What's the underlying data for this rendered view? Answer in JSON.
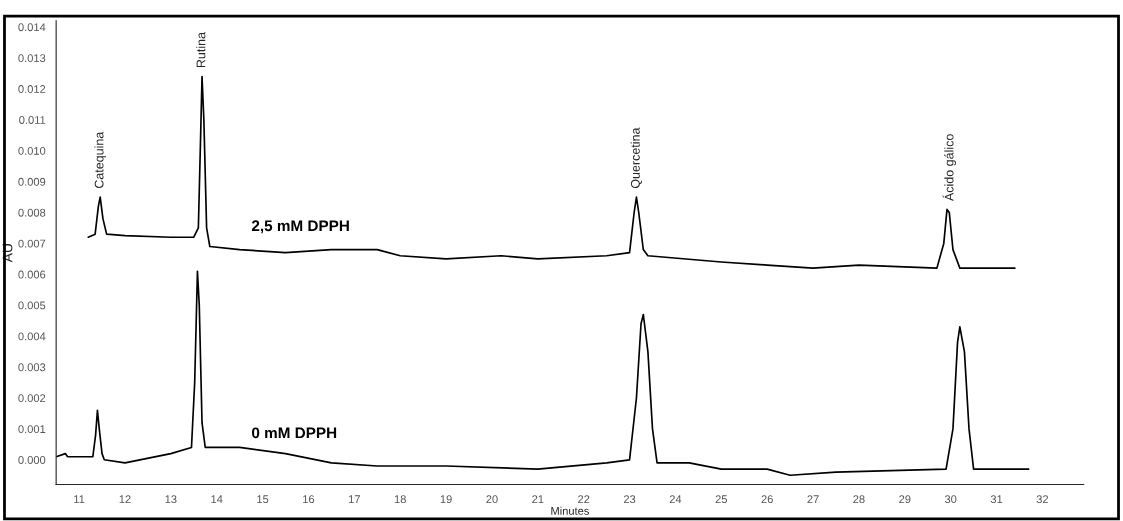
{
  "chart_data": {
    "type": "line",
    "xlabel": "Minutes",
    "ylabel": "AU",
    "xlim": [
      10.5,
      32.9
    ],
    "ylim": [
      -0.0008,
      0.0142
    ],
    "xticks": [
      11,
      12,
      13,
      14,
      15,
      16,
      17,
      18,
      19,
      20,
      21,
      22,
      23,
      24,
      25,
      26,
      27,
      28,
      29,
      30,
      31,
      32
    ],
    "yticks": [
      {
        "value": 0,
        "label": "0.000"
      },
      {
        "value": 0.001,
        "label": "0.001"
      },
      {
        "value": 0.002,
        "label": "0.002"
      },
      {
        "value": 0.003,
        "label": "0.003"
      },
      {
        "value": 0.004,
        "label": "0.004"
      },
      {
        "value": 0.005,
        "label": "0.005"
      },
      {
        "value": 0.006,
        "label": "0.006"
      },
      {
        "value": 0.007,
        "label": "0.007"
      },
      {
        "value": 0.008,
        "label": "0.008"
      },
      {
        "value": 0.009,
        "label": "0.009"
      },
      {
        "value": 0.01,
        "label": "0.010"
      },
      {
        "value": 0.011,
        "label": "0.011"
      },
      {
        "value": 0.012,
        "label": "0.012"
      },
      {
        "value": 0.013,
        "label": "0.013"
      },
      {
        "value": 0.014,
        "label": "0.014"
      }
    ],
    "grid": false,
    "legend": false,
    "marker": "none",
    "line_style": "solid",
    "series": [
      {
        "name": "2,5 mM DPPH",
        "color": "#000000",
        "x": [
          11.2,
          11.35,
          11.42,
          11.46,
          11.52,
          11.6,
          12.0,
          13.0,
          13.5,
          13.6,
          13.65,
          13.68,
          13.72,
          13.78,
          13.85,
          14.5,
          15.5,
          16.5,
          17.5,
          18.0,
          19.0,
          20.2,
          21.0,
          22.5,
          23.0,
          23.1,
          23.15,
          23.2,
          23.3,
          23.4,
          25.0,
          26.0,
          27.0,
          28.0,
          29.7,
          29.85,
          29.92,
          29.97,
          30.05,
          30.2,
          31.4
        ],
        "values": [
          0.0072,
          0.0073,
          0.0082,
          0.0085,
          0.0078,
          0.0073,
          0.00725,
          0.0072,
          0.0072,
          0.0075,
          0.0105,
          0.0124,
          0.011,
          0.0075,
          0.0069,
          0.0068,
          0.0067,
          0.0068,
          0.0068,
          0.0066,
          0.0065,
          0.0066,
          0.0065,
          0.0066,
          0.0067,
          0.008,
          0.0085,
          0.008,
          0.0068,
          0.0066,
          0.0064,
          0.0063,
          0.0062,
          0.0063,
          0.0062,
          0.007,
          0.0081,
          0.008,
          0.0068,
          0.0062,
          0.0062
        ]
      },
      {
        "name": "0 mM DPPH",
        "color": "#000000",
        "x": [
          10.5,
          10.7,
          10.75,
          11.0,
          11.3,
          11.36,
          11.4,
          11.44,
          11.5,
          11.55,
          12.0,
          13.0,
          13.45,
          13.52,
          13.58,
          13.62,
          13.68,
          13.75,
          14.5,
          15.5,
          16.5,
          17.5,
          19.0,
          21.0,
          22.5,
          23.0,
          23.15,
          23.25,
          23.3,
          23.4,
          23.5,
          23.6,
          24.3,
          25.0,
          26.0,
          26.5,
          27.5,
          29.9,
          30.05,
          30.15,
          30.2,
          30.3,
          30.4,
          30.5,
          31.7
        ],
        "values": [
          0.0001,
          0.0002,
          0.0001,
          0.0001,
          0.0001,
          0.0008,
          0.0016,
          0.001,
          0.0002,
          0.0,
          -0.0001,
          0.0002,
          0.0004,
          0.0025,
          0.0061,
          0.005,
          0.0012,
          0.0004,
          0.0004,
          0.0002,
          -0.0001,
          -0.0002,
          -0.0002,
          -0.0003,
          -0.0001,
          0.0,
          0.002,
          0.0044,
          0.0047,
          0.0035,
          0.001,
          -0.0001,
          -0.0001,
          -0.0003,
          -0.0003,
          -0.0005,
          -0.0004,
          -0.0003,
          0.001,
          0.0038,
          0.0043,
          0.0035,
          0.001,
          -0.0003,
          -0.0003
        ]
      }
    ],
    "annotations": [
      {
        "text": "Catequina",
        "x": 11.46,
        "y": 0.0085
      },
      {
        "text": "Rutina",
        "x": 13.68,
        "y": 0.0124
      },
      {
        "text": "Quercetina",
        "x": 23.15,
        "y": 0.0085
      },
      {
        "text": "Ácido gálico",
        "x": 29.97,
        "y": 0.0081
      }
    ]
  }
}
